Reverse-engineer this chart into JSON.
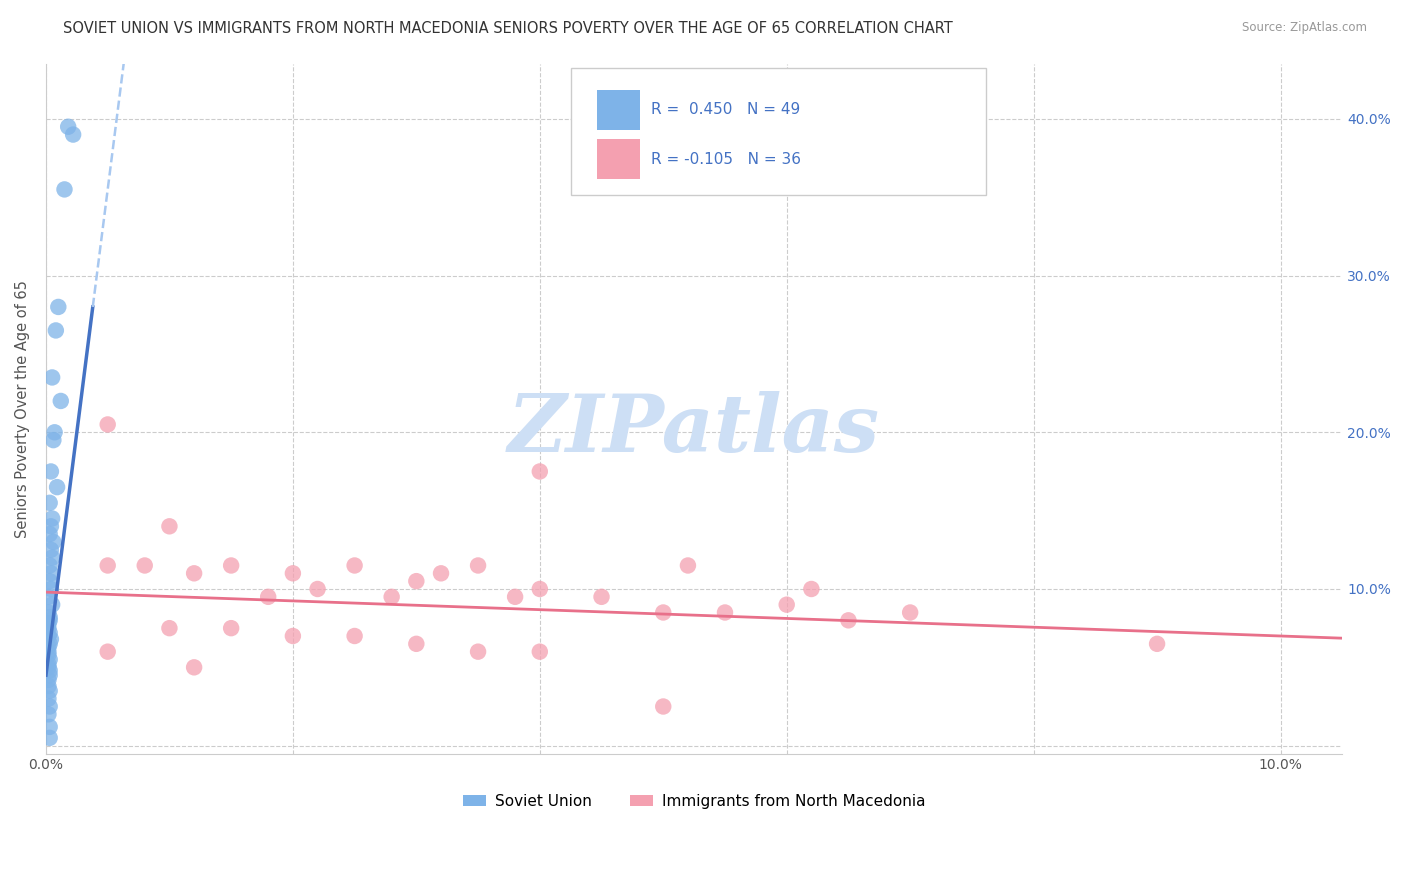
{
  "title": "SOVIET UNION VS IMMIGRANTS FROM NORTH MACEDONIA SENIORS POVERTY OVER THE AGE OF 65 CORRELATION CHART",
  "source": "Source: ZipAtlas.com",
  "ylabel": "Seniors Poverty Over the Age of 65",
  "xlim": [
    0.0,
    0.105
  ],
  "ylim": [
    -0.005,
    0.435
  ],
  "yticks": [
    0.0,
    0.1,
    0.2,
    0.3,
    0.4
  ],
  "xticks": [
    0.0,
    0.02,
    0.04,
    0.06,
    0.08,
    0.1
  ],
  "series1_label": "Soviet Union",
  "series2_label": "Immigrants from North Macedonia",
  "series1_color": "#7EB3E8",
  "series2_color": "#F4A0B0",
  "series1_R": 0.45,
  "series1_N": 49,
  "series2_R": -0.105,
  "series2_N": 36,
  "legend_color": "#4472C4",
  "line1_color": "#4472C4",
  "line1_dash_color": "#A8C8F0",
  "line2_color": "#E8708A",
  "watermark_color": "#cddff5",
  "background_color": "#ffffff",
  "grid_color": "#cccccc",
  "title_color": "#333333",
  "source_color": "#999999",
  "axis_label_color": "#555555",
  "right_tick_color": "#4472C4",
  "title_fontsize": 10.5,
  "axis_fontsize": 10.5,
  "tick_fontsize": 10,
  "legend_fontsize": 11,
  "series1_x": [
    0.0018,
    0.0022,
    0.0015,
    0.001,
    0.0008,
    0.0005,
    0.0012,
    0.0007,
    0.0006,
    0.0004,
    0.0009,
    0.0003,
    0.0005,
    0.0004,
    0.0003,
    0.0006,
    0.0004,
    0.0005,
    0.0003,
    0.0004,
    0.0003,
    0.0004,
    0.0002,
    0.0005,
    0.0002,
    0.0003,
    0.0003,
    0.0002,
    0.0002,
    0.0003,
    0.0002,
    0.0004,
    0.0003,
    0.0002,
    0.0002,
    0.0002,
    0.0003,
    0.0002,
    0.0002,
    0.0003,
    0.0003,
    0.0002,
    0.0002,
    0.0003,
    0.0002,
    0.0003,
    0.0002,
    0.0003,
    0.0003
  ],
  "series1_y": [
    0.395,
    0.39,
    0.355,
    0.28,
    0.265,
    0.235,
    0.22,
    0.2,
    0.195,
    0.175,
    0.165,
    0.155,
    0.145,
    0.14,
    0.135,
    0.13,
    0.125,
    0.12,
    0.115,
    0.11,
    0.105,
    0.1,
    0.095,
    0.09,
    0.085,
    0.082,
    0.08,
    0.078,
    0.075,
    0.072,
    0.07,
    0.068,
    0.065,
    0.063,
    0.06,
    0.058,
    0.055,
    0.052,
    0.05,
    0.048,
    0.045,
    0.042,
    0.038,
    0.035,
    0.03,
    0.025,
    0.02,
    0.012,
    0.005
  ],
  "series2_x": [
    0.005,
    0.04,
    0.005,
    0.008,
    0.01,
    0.012,
    0.015,
    0.018,
    0.02,
    0.022,
    0.025,
    0.028,
    0.03,
    0.032,
    0.035,
    0.038,
    0.04,
    0.045,
    0.05,
    0.052,
    0.055,
    0.06,
    0.062,
    0.065,
    0.07,
    0.01,
    0.015,
    0.02,
    0.025,
    0.03,
    0.035,
    0.04,
    0.09,
    0.005,
    0.012,
    0.05
  ],
  "series2_y": [
    0.205,
    0.175,
    0.115,
    0.115,
    0.14,
    0.11,
    0.115,
    0.095,
    0.11,
    0.1,
    0.115,
    0.095,
    0.105,
    0.11,
    0.115,
    0.095,
    0.1,
    0.095,
    0.085,
    0.115,
    0.085,
    0.09,
    0.1,
    0.08,
    0.085,
    0.075,
    0.075,
    0.07,
    0.07,
    0.065,
    0.06,
    0.06,
    0.065,
    0.06,
    0.05,
    0.025
  ],
  "reg1_slope": 62.0,
  "reg1_intercept": 0.045,
  "reg2_slope": -0.28,
  "reg2_intercept": 0.098
}
